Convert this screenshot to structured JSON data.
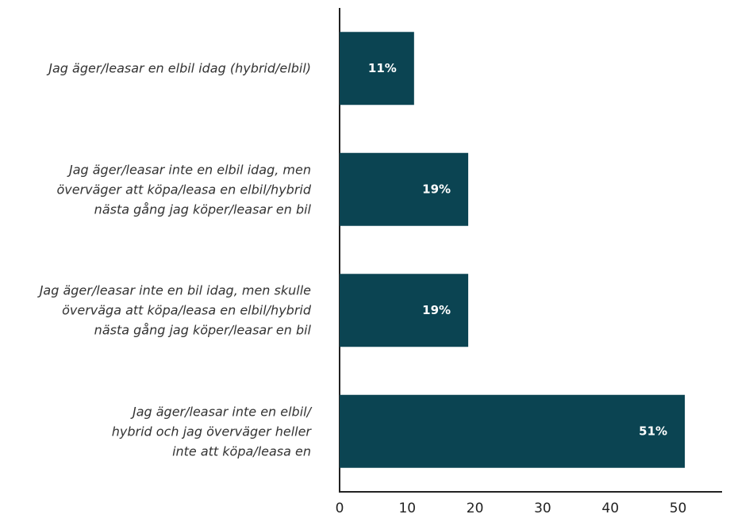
{
  "chart_data": {
    "type": "hbar",
    "categories": [
      "Jag äger/leasar en elbil idag (hybrid/elbil)",
      "Jag äger/leasar inte en elbil idag, men\növerväger att köpa/leasa en elbil/hybrid\nnästa gång jag köper/leasar en bil",
      "Jag äger/leasar inte en bil idag, men skulle\növerväga att köpa/leasa en elbil/hybrid\nnästa gång jag köper/leasar en bil",
      "Jag äger/leasar inte en elbil/\nhybrid och jag överväger heller\ninte att köpa/leasa en"
    ],
    "values": [
      11,
      19,
      19,
      51
    ],
    "value_labels": [
      "11%",
      "19%",
      "19%",
      "51%"
    ],
    "color": "#0b4452",
    "xlim": [
      0,
      56.5
    ],
    "xticks": [
      0,
      10,
      20,
      30,
      40,
      50
    ],
    "grid": false
  }
}
